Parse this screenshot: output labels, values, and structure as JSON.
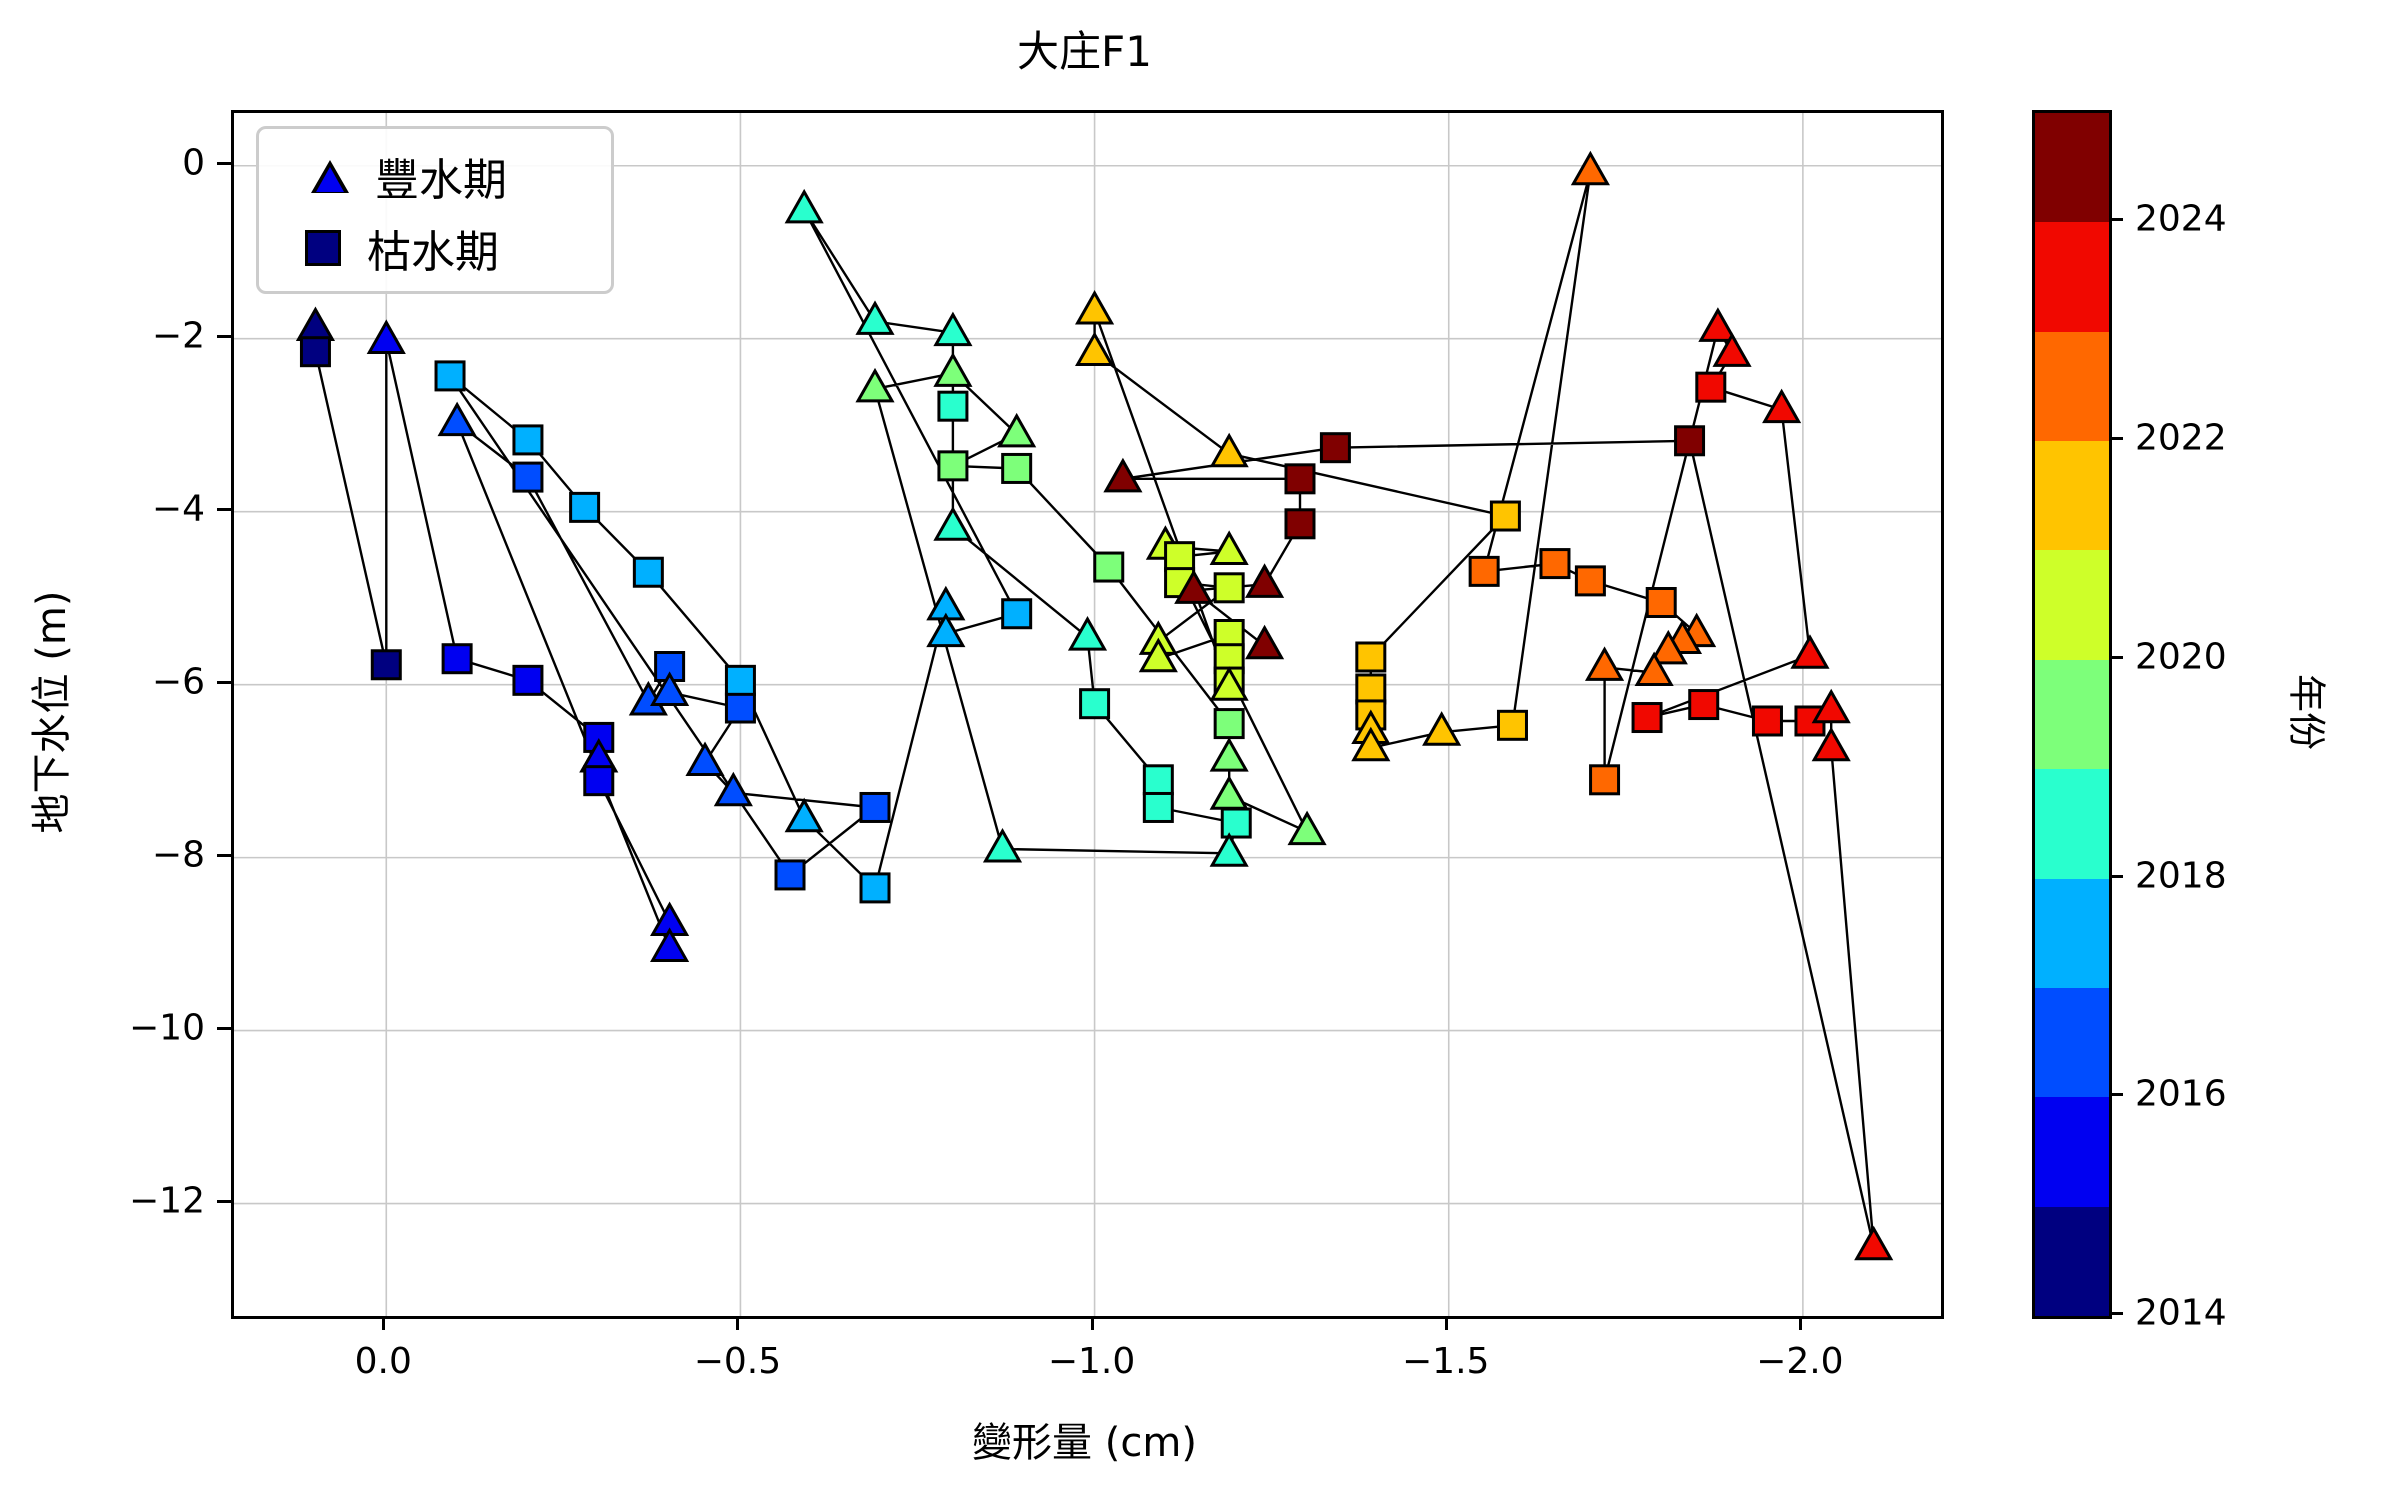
{
  "title": "大庄F1",
  "xlabel": "變形量 (cm)",
  "ylabel": "地下水位 (m)",
  "legend": {
    "items": [
      {
        "marker": "triangle",
        "label": "豐水期"
      },
      {
        "marker": "square",
        "label": "枯水期"
      }
    ]
  },
  "colorbar": {
    "label": "年份",
    "vmin": 2014,
    "vmax": 2025,
    "tick_years": [
      2014,
      2016,
      2018,
      2020,
      2022,
      2024
    ],
    "band_years": [
      2014,
      2015,
      2016,
      2017,
      2018,
      2019,
      2020,
      2021,
      2022,
      2023,
      2024
    ],
    "band_colors": [
      "#000080",
      "#0000f1",
      "#004dff",
      "#00b0ff",
      "#29ffce",
      "#7dff7a",
      "#ceff29",
      "#ffc400",
      "#ff6800",
      "#f10800",
      "#800000"
    ]
  },
  "axes": {
    "xlim": [
      0.215,
      -2.195
    ],
    "ylim": [
      0.61,
      -13.3
    ],
    "x_ticks": [
      0.0,
      -0.5,
      -1.0,
      -1.5,
      -2.0
    ],
    "x_tick_labels": [
      "0.0",
      "−0.5",
      "−1.0",
      "−1.5",
      "−2.0"
    ],
    "y_ticks": [
      0,
      -2,
      -4,
      -6,
      -8,
      -10,
      -12
    ],
    "y_tick_labels": [
      "0",
      "−2",
      "−4",
      "−6",
      "−8",
      "−10",
      "−12"
    ],
    "grid": true,
    "grid_color": "#c8c8c8"
  },
  "style": {
    "line_color": "#000000",
    "marker_edge": "#000000"
  },
  "chart_data": {
    "type": "scatter",
    "note": "connected seasonal path; x=deformation(cm), y=groundwater level(m), season W=豐水期(triangle) D=枯水期(square), colored by year (jet 2014-2024)",
    "points": [
      [
        0.1,
        -1.87,
        "W",
        2014
      ],
      [
        0.1,
        -2.15,
        "D",
        2014
      ],
      [
        0.0,
        -5.77,
        "D",
        2014
      ],
      [
        0.0,
        -2.02,
        "W",
        2015
      ],
      [
        -0.1,
        -5.7,
        "D",
        2015
      ],
      [
        -0.2,
        -5.95,
        "D",
        2015
      ],
      [
        -0.3,
        -6.61,
        "D",
        2015
      ],
      [
        -0.3,
        -6.86,
        "W",
        2015
      ],
      [
        -0.3,
        -7.11,
        "D",
        2015
      ],
      [
        -0.4,
        -8.75,
        "W",
        2015
      ],
      [
        -0.4,
        -9.05,
        "W",
        2015
      ],
      [
        -0.1,
        -2.97,
        "W",
        2016
      ],
      [
        -0.2,
        -3.6,
        "D",
        2016
      ],
      [
        -0.37,
        -6.2,
        "W",
        2016
      ],
      [
        -0.4,
        -5.79,
        "D",
        2016
      ],
      [
        -0.4,
        -6.09,
        "W",
        2016
      ],
      [
        -0.5,
        -6.27,
        "D",
        2016
      ],
      [
        -0.45,
        -6.9,
        "W",
        2016
      ],
      [
        -0.49,
        -7.25,
        "W",
        2016
      ],
      [
        -0.69,
        -7.42,
        "D",
        2016
      ],
      [
        -0.57,
        -8.2,
        "D",
        2016
      ],
      [
        -0.09,
        -2.43,
        "D",
        2017
      ],
      [
        -0.2,
        -3.17,
        "D",
        2017
      ],
      [
        -0.28,
        -3.95,
        "D",
        2017
      ],
      [
        -0.37,
        -4.7,
        "D",
        2017
      ],
      [
        -0.5,
        -5.95,
        "D",
        2017
      ],
      [
        -0.59,
        -7.55,
        "W",
        2017
      ],
      [
        -0.69,
        -8.35,
        "D",
        2017
      ],
      [
        -0.79,
        -5.1,
        "W",
        2017
      ],
      [
        -0.79,
        -5.41,
        "W",
        2017
      ],
      [
        -0.89,
        -5.18,
        "D",
        2017
      ],
      [
        -0.59,
        -0.51,
        "W",
        2018
      ],
      [
        -0.69,
        -1.8,
        "W",
        2018
      ],
      [
        -0.8,
        -1.93,
        "W",
        2018
      ],
      [
        -0.8,
        -2.78,
        "D",
        2018
      ],
      [
        -0.8,
        -4.18,
        "W",
        2018
      ],
      [
        -0.99,
        -5.45,
        "W",
        2018
      ],
      [
        -1.0,
        -6.22,
        "D",
        2018
      ],
      [
        -1.09,
        -7.1,
        "D",
        2018
      ],
      [
        -1.09,
        -7.42,
        "D",
        2018
      ],
      [
        -1.2,
        -7.6,
        "D",
        2018
      ],
      [
        -1.19,
        -7.95,
        "W",
        2018
      ],
      [
        -0.87,
        -7.9,
        "W",
        2018
      ],
      [
        -0.69,
        -2.58,
        "W",
        2019
      ],
      [
        -0.8,
        -2.4,
        "W",
        2019
      ],
      [
        -0.89,
        -3.1,
        "W",
        2019
      ],
      [
        -0.8,
        -3.47,
        "D",
        2019
      ],
      [
        -0.89,
        -3.5,
        "D",
        2019
      ],
      [
        -1.02,
        -4.64,
        "D",
        2019
      ],
      [
        -1.19,
        -6.45,
        "D",
        2019
      ],
      [
        -1.19,
        -6.85,
        "W",
        2019
      ],
      [
        -1.19,
        -7.29,
        "W",
        2019
      ],
      [
        -1.3,
        -7.7,
        "W",
        2019
      ],
      [
        -1.1,
        -4.4,
        "W",
        2020
      ],
      [
        -1.19,
        -4.46,
        "W",
        2020
      ],
      [
        -1.12,
        -4.52,
        "D",
        2020
      ],
      [
        -1.12,
        -4.82,
        "D",
        2020
      ],
      [
        -1.19,
        -4.88,
        "D",
        2020
      ],
      [
        -1.09,
        -5.5,
        "W",
        2020
      ],
      [
        -1.09,
        -5.7,
        "W",
        2020
      ],
      [
        -1.19,
        -5.42,
        "D",
        2020
      ],
      [
        -1.19,
        -5.7,
        "D",
        2020
      ],
      [
        -1.19,
        -5.97,
        "D",
        2020
      ],
      [
        -1.19,
        -6.03,
        "W",
        2020
      ],
      [
        -1.0,
        -1.68,
        "W",
        2021
      ],
      [
        -1.0,
        -2.16,
        "W",
        2021
      ],
      [
        -1.19,
        -3.33,
        "W",
        2021
      ],
      [
        -1.58,
        -4.05,
        "D",
        2021
      ],
      [
        -1.39,
        -5.68,
        "D",
        2021
      ],
      [
        -1.39,
        -6.05,
        "D",
        2021
      ],
      [
        -1.39,
        -6.35,
        "D",
        2021
      ],
      [
        -1.39,
        -6.53,
        "W",
        2021
      ],
      [
        -1.39,
        -6.73,
        "W",
        2021
      ],
      [
        -1.49,
        -6.55,
        "W",
        2021
      ],
      [
        -1.59,
        -6.47,
        "D",
        2021
      ],
      [
        -1.7,
        -0.07,
        "W",
        2022
      ],
      [
        -1.55,
        -4.69,
        "D",
        2022
      ],
      [
        -1.65,
        -4.6,
        "D",
        2022
      ],
      [
        -1.7,
        -4.8,
        "D",
        2022
      ],
      [
        -1.8,
        -5.05,
        "D",
        2022
      ],
      [
        -1.85,
        -5.41,
        "W",
        2022
      ],
      [
        -1.83,
        -5.49,
        "W",
        2022
      ],
      [
        -1.81,
        -5.61,
        "W",
        2022
      ],
      [
        -1.79,
        -5.86,
        "W",
        2022
      ],
      [
        -1.72,
        -5.8,
        "W",
        2022
      ],
      [
        -1.72,
        -7.1,
        "D",
        2022
      ],
      [
        -1.88,
        -1.88,
        "W",
        2023
      ],
      [
        -1.9,
        -2.17,
        "W",
        2023
      ],
      [
        -1.87,
        -2.56,
        "D",
        2023
      ],
      [
        -1.97,
        -2.82,
        "W",
        2023
      ],
      [
        -2.01,
        -5.66,
        "W",
        2023
      ],
      [
        -1.78,
        -6.38,
        "D",
        2023
      ],
      [
        -1.86,
        -6.23,
        "D",
        2023
      ],
      [
        -1.95,
        -6.42,
        "D",
        2023
      ],
      [
        -2.01,
        -6.42,
        "D",
        2023
      ],
      [
        -2.04,
        -6.29,
        "W",
        2023
      ],
      [
        -2.04,
        -6.73,
        "W",
        2023
      ],
      [
        -2.1,
        -12.5,
        "W",
        2023
      ],
      [
        -1.84,
        -3.18,
        "D",
        2024
      ],
      [
        -1.34,
        -3.26,
        "D",
        2024
      ],
      [
        -1.04,
        -3.62,
        "W",
        2024
      ],
      [
        -1.29,
        -3.62,
        "D",
        2024
      ],
      [
        -1.29,
        -4.14,
        "D",
        2024
      ],
      [
        -1.24,
        -4.84,
        "W",
        2024
      ],
      [
        -1.14,
        -4.91,
        "W",
        2024
      ],
      [
        -1.24,
        -5.55,
        "W",
        2024
      ]
    ]
  }
}
